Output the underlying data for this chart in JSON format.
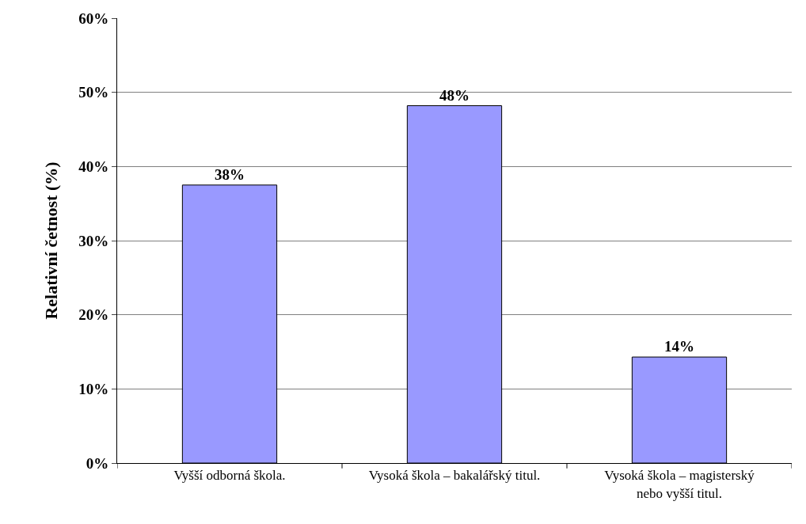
{
  "chart_data": {
    "type": "bar",
    "ylabel": "Relativní četnost (%)",
    "categories": [
      "Vyšší odborná škola.",
      "Vysoká škola – bakalářský titul.",
      "Vysoká škola – magisterský\nnebo vyšší titul."
    ],
    "values": [
      37.5,
      48.2,
      14.3
    ],
    "value_labels": [
      "38%",
      "48%",
      "14%"
    ],
    "color": "#9999ff",
    "ylim": [
      0,
      60
    ],
    "yticks": [
      {
        "value": 0,
        "label": "0%"
      },
      {
        "value": 10,
        "label": "10%"
      },
      {
        "value": 20,
        "label": "20%"
      },
      {
        "value": 30,
        "label": "30%"
      },
      {
        "value": 40,
        "label": "40%"
      },
      {
        "value": 50,
        "label": "50%"
      },
      {
        "value": 60,
        "label": "60%"
      }
    ],
    "grid": "y"
  }
}
